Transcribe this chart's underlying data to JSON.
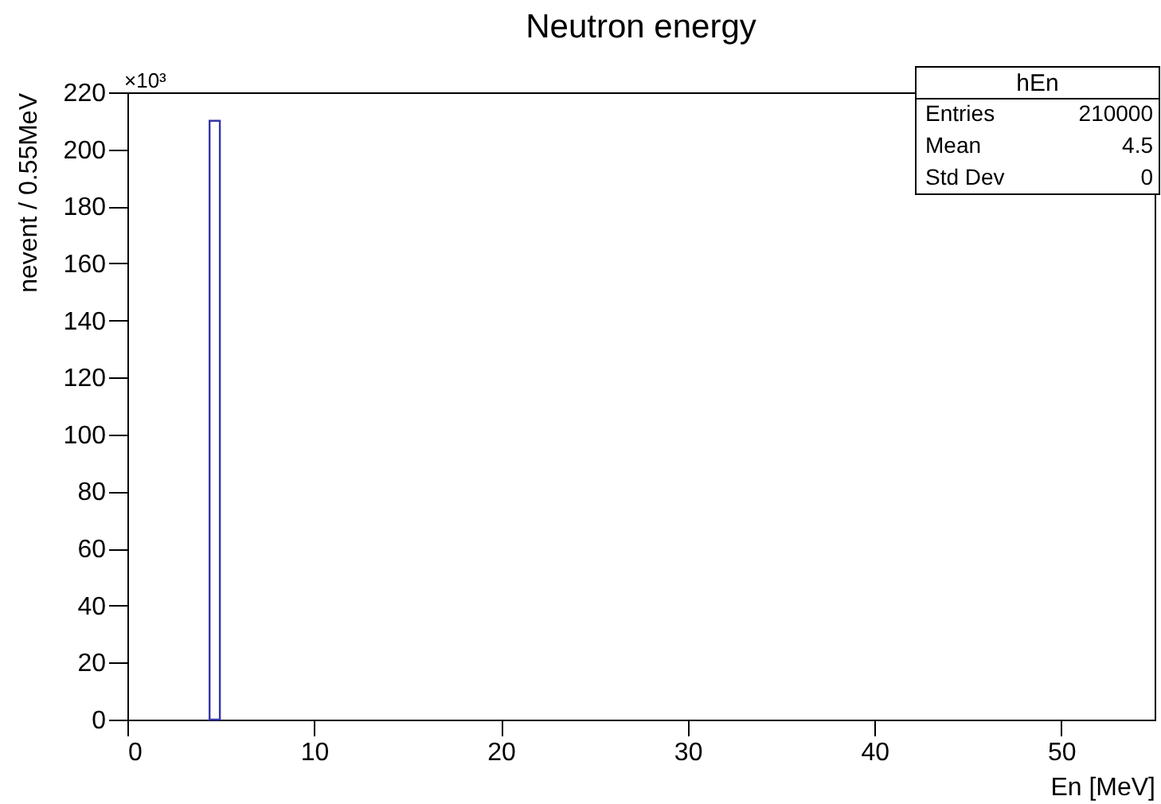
{
  "chart_data": {
    "type": "histogram",
    "title": "Neutron energy",
    "xlabel": "En [MeV]",
    "ylabel": "nevent / 0.55MeV",
    "bins": [
      4.4,
      4.95
    ],
    "values": [
      210
    ],
    "color": "#3535a8",
    "xlim": [
      0,
      55
    ],
    "xticks": [
      0,
      10,
      20,
      30,
      40,
      50
    ],
    "ylim": [
      0,
      220
    ],
    "yticks": [
      0,
      20,
      40,
      60,
      80,
      100,
      120,
      140,
      160,
      180,
      200,
      220
    ],
    "grid": false,
    "annotations": [
      "×10³",
      "hEn",
      "Entries 210000",
      "Mean 4.5",
      "Std Dev 0"
    ]
  }
}
